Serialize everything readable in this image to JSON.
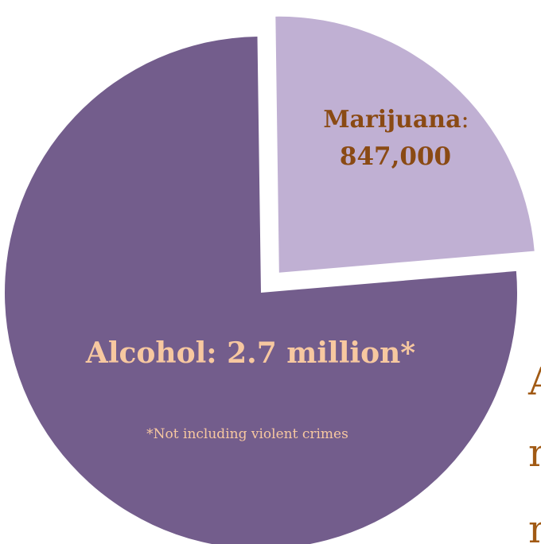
{
  "chart_data": {
    "type": "pie",
    "title": "",
    "slices": [
      {
        "name": "Marijuana",
        "label": "Marijuana",
        "separator": ":",
        "value_text": "847,000",
        "value": 847000,
        "color": "#c0b0d3",
        "label_color": "#8a4a14",
        "exploded": true
      },
      {
        "name": "Alcohol",
        "label": "Alcohol: 2.7 million*",
        "value": 2700000,
        "color": "#735d8c",
        "label_color": "#f7c8a0",
        "exploded": false
      }
    ],
    "footnote": "*Not including violent crimes",
    "legend": "none"
  },
  "side_text": {
    "lines": [
      "A",
      "n",
      "n"
    ],
    "color": "#a15a14"
  }
}
